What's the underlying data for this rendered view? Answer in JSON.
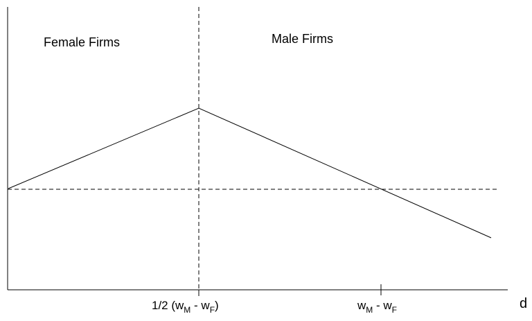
{
  "regions": {
    "left_label": "Female Firms",
    "right_label": "Male Firms"
  },
  "x_axis": {
    "label": "d",
    "ticks": [
      {
        "prefix": "1/2 (w",
        "sub1": "M",
        "mid": " - w",
        "sub2": "F",
        "suffix": ")"
      },
      {
        "prefix": "w",
        "sub1": "M",
        "mid": " - w",
        "sub2": "F",
        "suffix": ""
      }
    ]
  },
  "colors": {
    "line": "#000000",
    "background": "#ffffff"
  }
}
